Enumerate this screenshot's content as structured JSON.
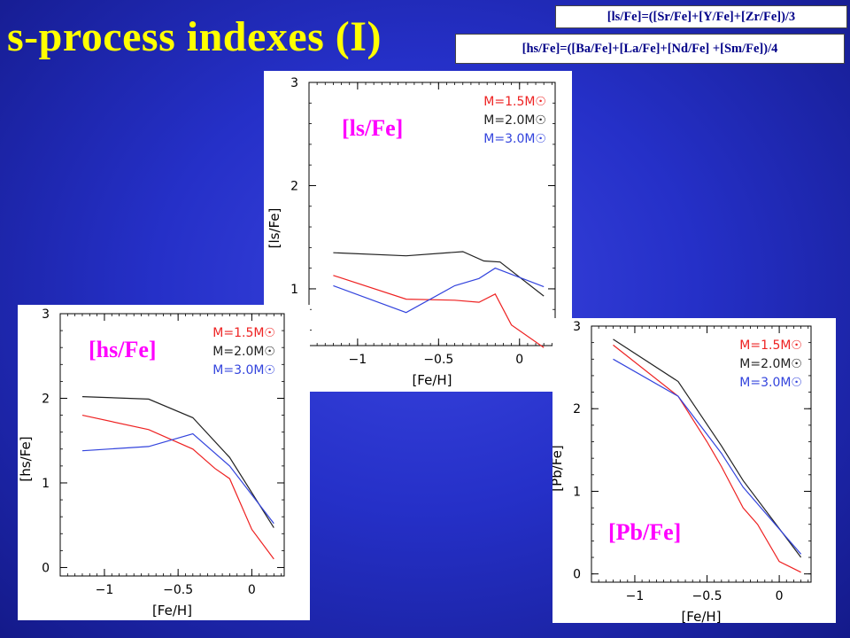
{
  "slide": {
    "title": "s-process indexes (I)",
    "formula_ls": "[ls/Fe]=([Sr/Fe]+[Y/Fe]+[Zr/Fe])/3",
    "formula_hs": "[hs/Fe]=([Ba/Fe]+[La/Fe]+[Nd/Fe]  +[Sm/Fe])/4",
    "overlay_color": "#ff00ff",
    "title_color": "#ffff00",
    "formula_text_color": "#000088"
  },
  "chart_data": [
    {
      "id": "ls",
      "type": "line",
      "overlay_label": "[ls/Fe]",
      "xlabel": "[Fe/H]",
      "ylabel": "[ls/Fe]",
      "xlim": [
        -1.3,
        0.22
      ],
      "ylim": [
        0.45,
        3.0
      ],
      "xticks": [
        -1,
        -0.5,
        0
      ],
      "xtick_labels": [
        "−1",
        "−0.5",
        "0"
      ],
      "yticks": [
        1,
        2,
        3
      ],
      "ytick_labels": [
        "1",
        "2",
        "3"
      ],
      "legend_position": "top-right",
      "series": [
        {
          "name": "M=1.5M☉",
          "color": "#ee2222",
          "x": [
            -1.15,
            -0.7,
            -0.4,
            -0.25,
            -0.15,
            -0.05,
            0.15
          ],
          "y": [
            1.13,
            0.9,
            0.89,
            0.87,
            0.95,
            0.65,
            0.43
          ]
        },
        {
          "name": "M=2.0M☉",
          "color": "#222222",
          "x": [
            -1.15,
            -0.7,
            -0.35,
            -0.22,
            -0.12,
            0.15
          ],
          "y": [
            1.35,
            1.32,
            1.36,
            1.27,
            1.26,
            0.93
          ]
        },
        {
          "name": "M=3.0M☉",
          "color": "#3344dd",
          "x": [
            -1.15,
            -0.7,
            -0.4,
            -0.25,
            -0.15,
            0.15
          ],
          "y": [
            1.03,
            0.77,
            1.03,
            1.1,
            1.2,
            1.02
          ]
        }
      ]
    },
    {
      "id": "hs",
      "type": "line",
      "overlay_label": "[hs/Fe]",
      "xlabel": "[Fe/H]",
      "ylabel": "[hs/Fe]",
      "xlim": [
        -1.3,
        0.22
      ],
      "ylim": [
        -0.1,
        3.0
      ],
      "xticks": [
        -1,
        -0.5,
        0
      ],
      "xtick_labels": [
        "−1",
        "−0.5",
        "0"
      ],
      "yticks": [
        0,
        1,
        2,
        3
      ],
      "ytick_labels": [
        "0",
        "1",
        "2",
        "3"
      ],
      "legend_position": "top-right",
      "series": [
        {
          "name": "M=1.5M☉",
          "color": "#ee2222",
          "x": [
            -1.15,
            -0.7,
            -0.4,
            -0.25,
            -0.15,
            0.0,
            0.15
          ],
          "y": [
            1.8,
            1.63,
            1.4,
            1.17,
            1.05,
            0.45,
            0.1
          ]
        },
        {
          "name": "M=2.0M☉",
          "color": "#222222",
          "x": [
            -1.15,
            -0.7,
            -0.4,
            -0.15,
            0.15
          ],
          "y": [
            2.02,
            1.99,
            1.77,
            1.3,
            0.47
          ]
        },
        {
          "name": "M=3.0M☉",
          "color": "#3344dd",
          "x": [
            -1.15,
            -0.7,
            -0.4,
            -0.15,
            0.15
          ],
          "y": [
            1.38,
            1.43,
            1.58,
            1.2,
            0.52
          ]
        }
      ]
    },
    {
      "id": "pb",
      "type": "line",
      "overlay_label": "[Pb/Fe]",
      "xlabel": "[Fe/H]",
      "ylabel": "[Pb/Fe]",
      "xlim": [
        -1.3,
        0.22
      ],
      "ylim": [
        -0.1,
        3.0
      ],
      "xticks": [
        -1,
        -0.5,
        0
      ],
      "xtick_labels": [
        "−1",
        "−0.5",
        "0"
      ],
      "yticks": [
        0,
        1,
        2,
        3
      ],
      "ytick_labels": [
        "0",
        "1",
        "2",
        "3"
      ],
      "legend_position": "top-right",
      "series": [
        {
          "name": "M=1.5M☉",
          "color": "#ee2222",
          "x": [
            -1.15,
            -0.7,
            -0.5,
            -0.4,
            -0.25,
            -0.15,
            0.0,
            0.15
          ],
          "y": [
            2.77,
            2.15,
            1.6,
            1.3,
            0.8,
            0.6,
            0.15,
            0.02
          ]
        },
        {
          "name": "M=2.0M☉",
          "color": "#222222",
          "x": [
            -1.15,
            -0.7,
            -0.4,
            -0.25,
            0.15
          ],
          "y": [
            2.84,
            2.33,
            1.55,
            1.13,
            0.2
          ]
        },
        {
          "name": "M=3.0M☉",
          "color": "#3344dd",
          "x": [
            -1.15,
            -0.7,
            -0.4,
            -0.25,
            0.15
          ],
          "y": [
            2.6,
            2.15,
            1.46,
            1.05,
            0.24
          ]
        }
      ]
    }
  ]
}
